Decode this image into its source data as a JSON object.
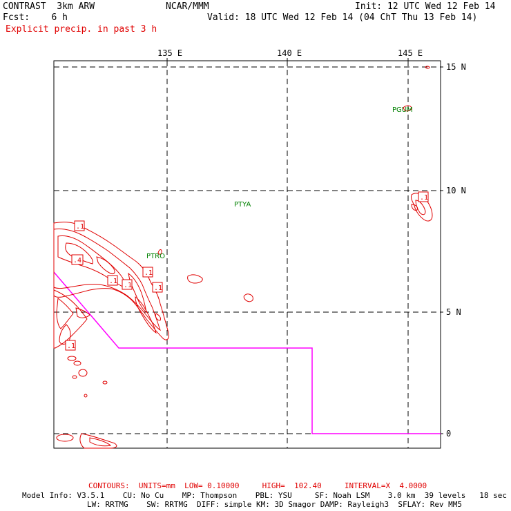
{
  "header": {
    "model": "CONTRAST  3km ARW",
    "org": "NCAR/MMM",
    "init": "Init: 12 UTC Wed 12 Feb 14",
    "fcst": "Fcst:    6 h",
    "valid": "Valid: 18 UTC Wed 12 Feb 14 (04 ChT Thu 13 Feb 14)",
    "field": "Explicit precip. in past 3 h"
  },
  "map": {
    "lon_labels": [
      "135 E",
      "140 E",
      "145 E"
    ],
    "lat_labels": [
      "15 N",
      "10 N",
      "5 N",
      "0"
    ],
    "stations": [
      "PGUM",
      "PTYA",
      "PTRO"
    ],
    "contour_labels": [
      ".1",
      ".1",
      ".4",
      ".1",
      ".1",
      ".1",
      ".1",
      ".1"
    ]
  },
  "footer": {
    "contours": "CONTOURS:  UNITS=mm  LOW= 0.10000     HIGH=  102.40     INTERVAL=X  4.0000",
    "model_info_1": "Model Info: V3.5.1    CU: No Cu    MP: Thompson    PBL: YSU     SF: Noah LSM    3.0 km  39 levels   18 sec",
    "model_info_2": "LW: RRTMG    SW: RRTMG  DIFF: simple KM: 3D Smagor DAMP: Rayleigh3  SFLAY: Rev MM5"
  },
  "colors": {
    "contour": "#e00000",
    "boundary": "#ff00ff",
    "station": "#008000",
    "grid": "#000000"
  }
}
